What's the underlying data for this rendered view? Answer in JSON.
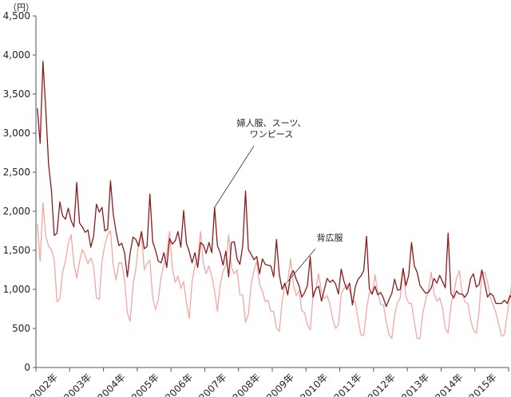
{
  "chart_data": {
    "type": "line",
    "unit_label": "（円）",
    "ylim": [
      0,
      4500
    ],
    "y_ticks": [
      0,
      500,
      1000,
      1500,
      2000,
      2500,
      3000,
      3500,
      4000,
      4500
    ],
    "y_tick_labels": [
      "0",
      "500",
      "1,000",
      "1,500",
      "2,000",
      "2,500",
      "3,000",
      "3,500",
      "4,000",
      "4,500"
    ],
    "x_start": "2002-01",
    "x_end": "2015-12",
    "x_tick_labels": [
      "2002年",
      "2003年",
      "2004年",
      "2005年",
      "2006年",
      "2007年",
      "2008年",
      "2009年",
      "2010年",
      "2011年",
      "2012年",
      "2013年",
      "2014年",
      "2015年"
    ],
    "grid": false,
    "legend": "none",
    "series": [
      {
        "name": "婦人服、スーツ、ワンピース",
        "label_lines": [
          "婦人服、スーツ、",
          "ワンピース"
        ],
        "color": "#8b1a1a",
        "values": [
          3320,
          2870,
          3920,
          3300,
          2600,
          2270,
          1690,
          1720,
          2120,
          1940,
          1900,
          2040,
          1880,
          1800,
          2370,
          1850,
          1800,
          1730,
          1760,
          1540,
          1680,
          2090,
          1990,
          2050,
          1750,
          1770,
          2390,
          1960,
          1730,
          1560,
          1590,
          1470,
          1160,
          1470,
          1670,
          1640,
          1550,
          1740,
          1520,
          1550,
          2220,
          1610,
          1500,
          1360,
          1340,
          1470,
          1280,
          1650,
          1580,
          1620,
          1740,
          1540,
          2010,
          1590,
          1480,
          1340,
          1470,
          1280,
          1600,
          1570,
          1460,
          1600,
          1470,
          2050,
          1560,
          1470,
          1310,
          1490,
          1160,
          1600,
          1610,
          1390,
          1320,
          1560,
          2260,
          1510,
          1450,
          1380,
          1420,
          1200,
          1390,
          1320,
          1310,
          1300,
          1160,
          1640,
          1190,
          1000,
          1080,
          930,
          1180,
          1240,
          1130,
          1050,
          900,
          960,
          1050,
          1420,
          900,
          1010,
          1040,
          850,
          1000,
          1140,
          1090,
          1120,
          1070,
          940,
          1260,
          1100,
          1000,
          1080,
          800,
          1030,
          1130,
          1170,
          1240,
          1680,
          1010,
          940,
          1040,
          930,
          960,
          890,
          780,
          870,
          950,
          1130,
          990,
          1000,
          1270,
          1050,
          1180,
          1600,
          1300,
          1220,
          1050,
          1000,
          950,
          960,
          1020,
          1140,
          1080,
          1180,
          1100,
          1020,
          1720,
          950,
          890,
          980,
          940,
          940,
          900,
          960,
          1140,
          1200,
          1030,
          1060,
          1250,
          1080,
          900,
          950,
          920,
          820,
          820,
          820,
          860,
          820,
          920,
          880,
          930,
          1200
        ]
      },
      {
        "name": "背広服",
        "label_lines": [
          "背広服"
        ],
        "color": "#f0a8a4",
        "values": [
          1840,
          1360,
          2110,
          1680,
          1550,
          1510,
          1380,
          840,
          880,
          1220,
          1360,
          1590,
          1700,
          1330,
          1140,
          1360,
          1510,
          1430,
          1330,
          1400,
          1300,
          890,
          870,
          1370,
          1570,
          1700,
          1750,
          1300,
          1120,
          1340,
          1340,
          1120,
          700,
          590,
          1050,
          1260,
          1600,
          1710,
          1250,
          1330,
          1370,
          900,
          740,
          870,
          1160,
          1320,
          1450,
          1740,
          1270,
          1090,
          1170,
          1010,
          1100,
          830,
          630,
          1100,
          1300,
          1380,
          1740,
          1330,
          1200,
          1300,
          1170,
          980,
          720,
          1060,
          1230,
          1300,
          1700,
          1280,
          1200,
          1250,
          930,
          930,
          580,
          680,
          1060,
          1240,
          1360,
          1060,
          980,
          840,
          860,
          720,
          720,
          500,
          460,
          840,
          1060,
          1100,
          1390,
          1070,
          920,
          980,
          730,
          700,
          550,
          480,
          930,
          1010,
          1200,
          960,
          880,
          920,
          810,
          620,
          500,
          540,
          940,
          1010,
          1060,
          980,
          840,
          840,
          620,
          420,
          410,
          740,
          960,
          940,
          1190,
          960,
          810,
          800,
          590,
          420,
          370,
          670,
          830,
          890,
          1270,
          910,
          820,
          820,
          580,
          370,
          370,
          700,
          860,
          990,
          1220,
          950,
          850,
          890,
          770,
          500,
          440,
          800,
          950,
          1140,
          1240,
          950,
          840,
          820,
          610,
          480,
          440,
          720,
          1200,
          1220,
          1100,
          900,
          800,
          700,
          550,
          400,
          420,
          680,
          900,
          1200,
          1300
        ]
      }
    ],
    "annotations": [
      {
        "series": 0,
        "lines": [
          "婦人服、スーツ、",
          "ワンピース"
        ]
      },
      {
        "series": 1,
        "lines": [
          "背広服"
        ]
      }
    ]
  }
}
